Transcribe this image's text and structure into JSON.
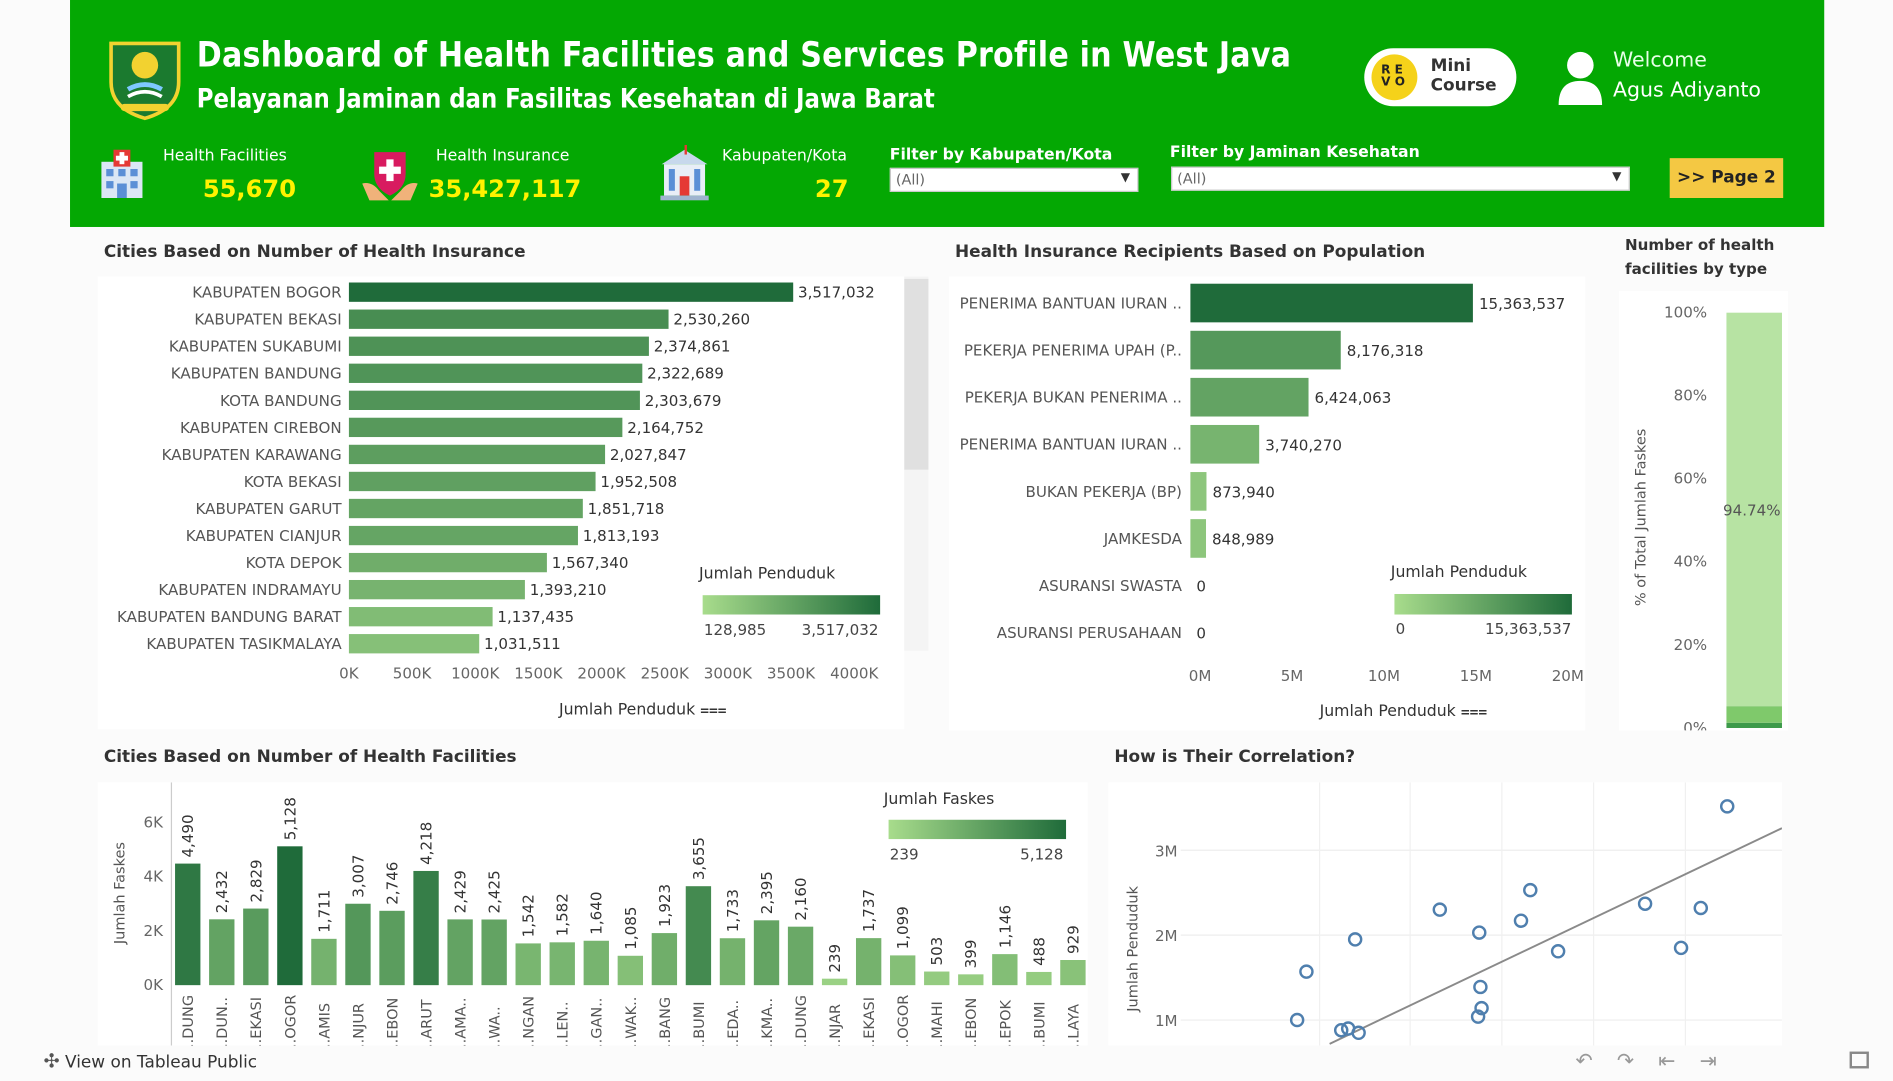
{
  "header": {
    "title": "Dashboard of Health Facilities and Services Profile in West Java",
    "subtitle": "Pelayanan Jaminan dan Fasilitas Kesehatan di Jawa Barat",
    "badge_line1": "Mini",
    "badge_line2": "Course",
    "welcome": "Welcome",
    "user_name": "Agus Adiyanto",
    "page_button": ">> Page 2"
  },
  "kpis": [
    {
      "label": "Health Facilities",
      "value": "55,670",
      "icon": "hospital-icon"
    },
    {
      "label": "Health Insurance",
      "value": "35,427,117",
      "icon": "insurance-shield-icon"
    },
    {
      "label": "Kabupaten/Kota",
      "value": "27",
      "icon": "city-hall-icon"
    }
  ],
  "filters": [
    {
      "label": "Filter by Kabupaten/Kota",
      "value": "(All)"
    },
    {
      "label": "Filter by Jaminan Kesehatan",
      "value": "(All)"
    }
  ],
  "colors": {
    "header_green": "#04a803",
    "bar_dark": "#1f6b3a",
    "bar_light": "#a8dc8c",
    "kpi_yellow": "#fff200",
    "button_yellow": "#f4c843",
    "scatter_blue": "#4f7fae"
  },
  "footer": {
    "text": "View on Tableau Public"
  },
  "chart_data": [
    {
      "id": "insurance_by_city",
      "type": "bar",
      "orientation": "horizontal",
      "title": "Cities Based on Number of Health Insurance",
      "xlabel": "Jumlah Penduduk",
      "categories": [
        "KABUPATEN BOGOR",
        "KABUPATEN BEKASI",
        "KABUPATEN SUKABUMI",
        "KABUPATEN BANDUNG",
        "KOTA BANDUNG",
        "KABUPATEN CIREBON",
        "KABUPATEN KARAWANG",
        "KOTA BEKASI",
        "KABUPATEN GARUT",
        "KABUPATEN CIANJUR",
        "KOTA DEPOK",
        "KABUPATEN INDRAMAYU",
        "KABUPATEN BANDUNG BARAT",
        "KABUPATEN TASIKMALAYA"
      ],
      "values": [
        3517032,
        2530260,
        2374861,
        2322689,
        2303679,
        2164752,
        2027847,
        1952508,
        1851718,
        1813193,
        1567340,
        1393210,
        1137435,
        1031511
      ],
      "value_labels": [
        "3,517,032",
        "2,530,260",
        "2,374,861",
        "2,322,689",
        "2,303,679",
        "2,164,752",
        "2,027,847",
        "1,952,508",
        "1,851,718",
        "1,813,193",
        "1,567,340",
        "1,393,210",
        "1,137,435",
        "1,031,511"
      ],
      "xlim": [
        0,
        4200000
      ],
      "xticks": [
        "0K",
        "500K",
        "1000K",
        "1500K",
        "2000K",
        "2500K",
        "3000K",
        "3500K",
        "4000K"
      ],
      "legend": {
        "title": "Jumlah Penduduk",
        "min": "128,985",
        "max": "3,517,032"
      }
    },
    {
      "id": "recipients_by_population",
      "type": "bar",
      "orientation": "horizontal",
      "title": "Health Insurance Recipients Based on Population",
      "xlabel": "Jumlah Penduduk",
      "categories": [
        "PENERIMA BANTUAN IURAN ..",
        "PEKERJA PENERIMA UPAH (P..",
        "PEKERJA BUKAN PENERIMA ..",
        "PENERIMA BANTUAN IURAN ..",
        "BUKAN PEKERJA (BP)",
        "JAMKESDA",
        "ASURANSI SWASTA",
        "ASURANSI PERUSAHAAN"
      ],
      "values": [
        15363537,
        8176318,
        6424063,
        3740270,
        873940,
        848989,
        0,
        0
      ],
      "value_labels": [
        "15,363,537",
        "8,176,318",
        "6,424,063",
        "3,740,270",
        "873,940",
        "848,989",
        "0",
        "0"
      ],
      "xlim": [
        0,
        20500000
      ],
      "xticks": [
        "0M",
        "5M",
        "10M",
        "15M",
        "20M"
      ],
      "legend": {
        "title": "Jumlah Penduduk",
        "min": "0",
        "max": "15,363,537"
      }
    },
    {
      "id": "facilities_by_type",
      "type": "bar",
      "orientation": "vertical-stacked-100",
      "title": "Number of health facilities by type",
      "ylabel": "% of Total Jumlah Faskes",
      "yticks": [
        "100%",
        "80%",
        "60%",
        "40%",
        "20%",
        "0%"
      ],
      "segments": [
        {
          "value": 94.74,
          "label": "94.74%",
          "color": "#b7e3a3"
        },
        {
          "value": 4.0,
          "color": "#7fc96b"
        },
        {
          "value": 1.26,
          "color": "#3d9a4a"
        }
      ]
    },
    {
      "id": "facilities_by_city",
      "type": "bar",
      "orientation": "vertical",
      "title": "Cities Based on Number of Health Facilities",
      "ylabel": "Jumlah Faskes",
      "categories": [
        "..DUNG",
        "..DUN..",
        "..EKASI",
        "..OGOR",
        "..AMIS",
        "..NJUR",
        "..EBON",
        "..ARUT",
        "..AMA..",
        "..WA..",
        "..NGAN",
        "..LEN..",
        "..GAN..",
        "..WAK..",
        "..BANG",
        "..BUMI",
        "..EDA..",
        "..KMA..",
        "..DUNG",
        "..NJAR",
        "..EKASI",
        "..OGOR",
        "..MAHI",
        "..EBON",
        "..EPOK",
        "..BUMI",
        "..LAYA"
      ],
      "values": [
        4490,
        2432,
        2829,
        5128,
        1711,
        3007,
        2746,
        4218,
        2429,
        2425,
        1542,
        1582,
        1640,
        1085,
        1923,
        3655,
        1733,
        2395,
        2160,
        239,
        1737,
        1099,
        503,
        399,
        1146,
        488,
        929
      ],
      "value_labels": [
        "4,490",
        "2,432",
        "2,829",
        "5,128",
        "1,711",
        "3,007",
        "2,746",
        "4,218",
        "2,429",
        "2,425",
        "1,542",
        "1,582",
        "1,640",
        "1,085",
        "1,923",
        "3,655",
        "1,733",
        "2,395",
        "2,160",
        "239",
        "1,737",
        "1,099",
        "503",
        "399",
        "1,146",
        "488",
        "929"
      ],
      "ylim": [
        0,
        6500
      ],
      "yticks": [
        "6K",
        "4K",
        "2K",
        "0K"
      ],
      "legend": {
        "title": "Jumlah Faskes",
        "min": "239",
        "max": "5,128"
      }
    },
    {
      "id": "correlation",
      "type": "scatter",
      "title": "How is Their Correlation?",
      "ylabel": "Jumlah Penduduk",
      "yticks": [
        "3M",
        "2M",
        "1M"
      ],
      "ylim": [
        700000,
        3800000
      ],
      "xlim": [
        0,
        5600
      ],
      "points": [
        {
          "x": 5128,
          "y": 3517032
        },
        {
          "x": 1500,
          "y": 1570000
        },
        {
          "x": 1420,
          "y": 1000000
        },
        {
          "x": 1920,
          "y": 1950000
        },
        {
          "x": 1800,
          "y": 880000
        },
        {
          "x": 1860,
          "y": 900000
        },
        {
          "x": 1950,
          "y": 850000
        },
        {
          "x": 2650,
          "y": 2300000
        },
        {
          "x": 2990,
          "y": 2030000
        },
        {
          "x": 3000,
          "y": 1390000
        },
        {
          "x": 3010,
          "y": 1140000
        },
        {
          "x": 2980,
          "y": 1040000
        },
        {
          "x": 3350,
          "y": 2170000
        },
        {
          "x": 3430,
          "y": 2530000
        },
        {
          "x": 3670,
          "y": 1810000
        },
        {
          "x": 4420,
          "y": 2370000
        },
        {
          "x": 4730,
          "y": 1850000
        },
        {
          "x": 4900,
          "y": 2320000
        }
      ],
      "trendline": {
        "x": [
          1700,
          5600
        ],
        "y": [
          720000,
          3260000
        ]
      }
    }
  ]
}
